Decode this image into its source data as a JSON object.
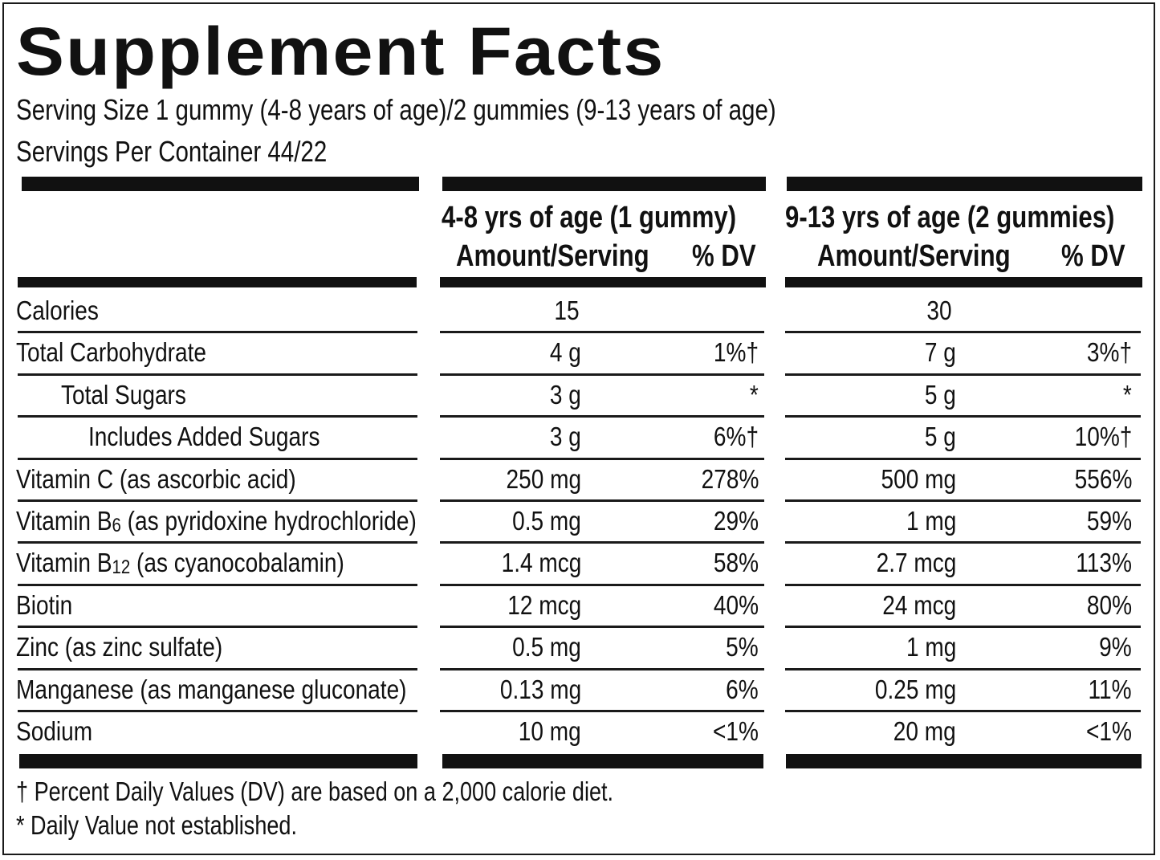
{
  "header": {
    "title": "Supplement Facts",
    "serving_size": "Serving Size 1 gummy (4-8 years of age)/2 gummies (9-13 years of age)",
    "servings_per_container": "Servings Per Container 44/22"
  },
  "columns": [
    {
      "group": "4-8 yrs of age (1 gummy)",
      "amount_header": "Amount/Serving",
      "dv_header": "% DV"
    },
    {
      "group": "9-13 yrs of age (2 gummies)",
      "amount_header": "Amount/Serving",
      "dv_header": "% DV"
    }
  ],
  "rows": [
    {
      "label": "Calories",
      "indent": 0,
      "a1": "15",
      "d1": "",
      "a2": "30",
      "d2": ""
    },
    {
      "label": "Total Carbohydrate",
      "indent": 0,
      "a1": "4 g",
      "d1": "1%†",
      "a2": "7 g",
      "d2": "3%†"
    },
    {
      "label": "Total Sugars",
      "indent": 1,
      "a1": "3 g",
      "d1": "*",
      "a2": "5 g",
      "d2": "*"
    },
    {
      "label": "Includes Added Sugars",
      "indent": 2,
      "a1": "3 g",
      "d1": "6%†",
      "a2": "5 g",
      "d2": "10%†"
    },
    {
      "label": "Vitamin C (as ascorbic acid)",
      "indent": 0,
      "a1": "250 mg",
      "d1": "278%",
      "a2": "500 mg",
      "d2": "556%"
    },
    {
      "label_pre": "Vitamin B",
      "label_sub": "6",
      "label_post": " (as pyridoxine hydrochloride)",
      "indent": 0,
      "a1": "0.5 mg",
      "d1": "29%",
      "a2": "1 mg",
      "d2": "59%"
    },
    {
      "label_pre": "Vitamin B",
      "label_sub": "12",
      "label_post": " (as cyanocobalamin)",
      "indent": 0,
      "a1": "1.4 mcg",
      "d1": "58%",
      "a2": "2.7 mcg",
      "d2": "113%"
    },
    {
      "label": "Biotin",
      "indent": 0,
      "a1": "12 mcg",
      "d1": "40%",
      "a2": "24 mcg",
      "d2": "80%"
    },
    {
      "label": "Zinc (as zinc sulfate)",
      "indent": 0,
      "a1": "0.5 mg",
      "d1": "5%",
      "a2": "1 mg",
      "d2": "9%"
    },
    {
      "label": "Manganese (as manganese gluconate)",
      "indent": 0,
      "a1": "0.13 mg",
      "d1": "6%",
      "a2": "0.25 mg",
      "d2": "11%"
    },
    {
      "label": "Sodium",
      "indent": 0,
      "a1": "10 mg",
      "d1": "<1%",
      "a2": "20 mg",
      "d2": "<1%"
    }
  ],
  "footnotes": [
    "† Percent Daily Values (DV) are based on a 2,000 calorie diet.",
    "* Daily Value not established."
  ],
  "colors": {
    "ink": "#111111",
    "background": "#ffffff"
  }
}
